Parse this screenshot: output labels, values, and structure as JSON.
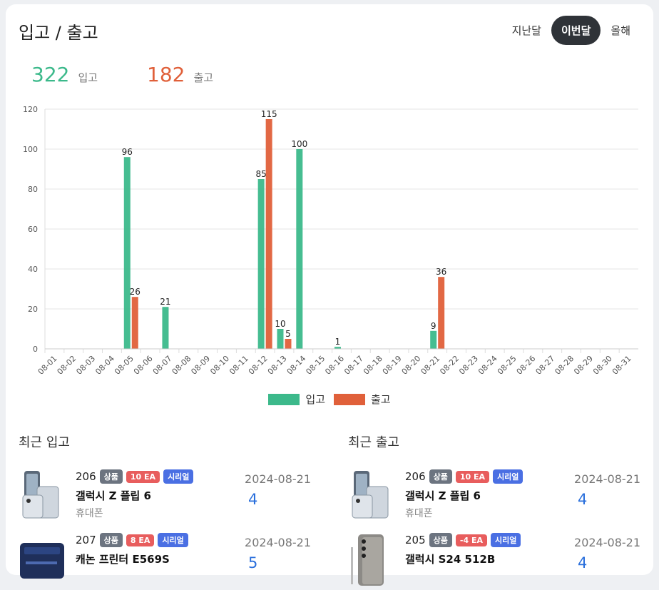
{
  "header": {
    "title": "입고 / 출고",
    "periods": [
      {
        "label": "지난달",
        "active": false
      },
      {
        "label": "이번달",
        "active": true
      },
      {
        "label": "올해",
        "active": false
      }
    ]
  },
  "summary": {
    "in_count": "322",
    "in_label": "입고",
    "out_count": "182",
    "out_label": "출고"
  },
  "colors": {
    "in": "#3cb98b",
    "out": "#e0603a"
  },
  "chart_data": {
    "type": "bar",
    "categories": [
      "08-01",
      "08-02",
      "08-03",
      "08-04",
      "08-05",
      "08-06",
      "08-07",
      "08-08",
      "08-09",
      "08-10",
      "08-11",
      "08-12",
      "08-13",
      "08-14",
      "08-15",
      "08-16",
      "08-17",
      "08-18",
      "08-19",
      "08-20",
      "08-21",
      "08-22",
      "08-23",
      "08-24",
      "08-25",
      "08-26",
      "08-27",
      "08-28",
      "08-29",
      "08-30",
      "08-31"
    ],
    "series": [
      {
        "name": "입고",
        "values": [
          0,
          0,
          0,
          0,
          96,
          0,
          21,
          0,
          0,
          0,
          0,
          85,
          10,
          100,
          0,
          1,
          0,
          0,
          0,
          0,
          9,
          0,
          0,
          0,
          0,
          0,
          0,
          0,
          0,
          0,
          0
        ]
      },
      {
        "name": "출고",
        "values": [
          0,
          0,
          0,
          0,
          26,
          0,
          0,
          0,
          0,
          0,
          0,
          115,
          5,
          0,
          0,
          0,
          0,
          0,
          0,
          0,
          36,
          0,
          0,
          0,
          0,
          0,
          0,
          0,
          0,
          0,
          0
        ]
      }
    ],
    "ylim": [
      0,
      120
    ],
    "yticks": [
      0,
      20,
      40,
      60,
      80,
      100,
      120
    ],
    "grid": true,
    "legend": "bottom"
  },
  "recent_in": {
    "title": "최근 입고",
    "items": [
      {
        "id": "206",
        "badge_type": "상품",
        "badge_qty": "10 EA",
        "badge_serial": "시리얼",
        "name": "갤럭시 Z 플립 6",
        "category": "휴대폰",
        "date": "2024-08-21",
        "qty": "4",
        "thumb": "flip-phone-icon"
      },
      {
        "id": "207",
        "badge_type": "상품",
        "badge_qty": "8 EA",
        "badge_serial": "시리얼",
        "name": "캐논 프린터 E569S",
        "category": "",
        "date": "2024-08-21",
        "qty": "5",
        "thumb": "printer-icon"
      }
    ]
  },
  "recent_out": {
    "title": "최근 출고",
    "items": [
      {
        "id": "206",
        "badge_type": "상품",
        "badge_qty": "10 EA",
        "badge_serial": "시리얼",
        "name": "갤럭시 Z 플립 6",
        "category": "휴대폰",
        "date": "2024-08-21",
        "qty": "4",
        "thumb": "flip-phone-icon"
      },
      {
        "id": "205",
        "badge_type": "상품",
        "badge_qty": "-4 EA",
        "badge_serial": "시리얼",
        "name": "갤럭시 S24 512B",
        "category": "",
        "date": "2024-08-21",
        "qty": "4",
        "thumb": "smartphone-icon"
      }
    ]
  }
}
